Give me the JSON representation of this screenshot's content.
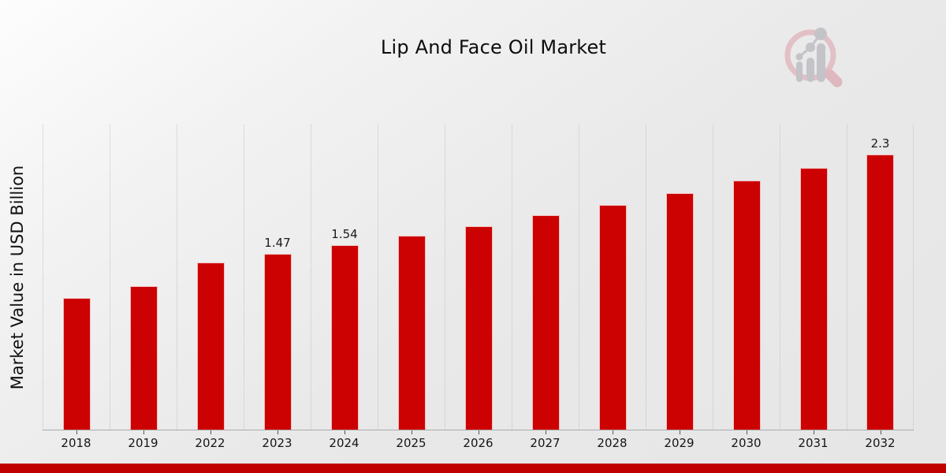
{
  "page": {
    "title": "Lip And Face Oil Market",
    "footer_accent_color": "#c00000",
    "watermark_icon": "magnifier-bar-chart-logo"
  },
  "chart_data": {
    "type": "bar",
    "title": "Lip And Face Oil Market",
    "xlabel": "",
    "ylabel": "Market Value in USD Billion",
    "categories": [
      "2018",
      "2019",
      "2022",
      "2023",
      "2024",
      "2025",
      "2026",
      "2027",
      "2028",
      "2029",
      "2030",
      "2031",
      "2032"
    ],
    "values": [
      1.1,
      1.2,
      1.4,
      1.47,
      1.54,
      1.62,
      1.7,
      1.79,
      1.88,
      1.98,
      2.08,
      2.19,
      2.3
    ],
    "bar_labels": [
      "",
      "",
      "",
      "1.47",
      "1.54",
      "",
      "",
      "",
      "",
      "",
      "",
      "",
      "2.3"
    ],
    "ylim": [
      0,
      2.55
    ],
    "grid": "vertical-dotted",
    "legend": "none",
    "bar_color": "#cc0202",
    "axis_color": "#ababab",
    "gridline_color": "#c3c3c3"
  }
}
